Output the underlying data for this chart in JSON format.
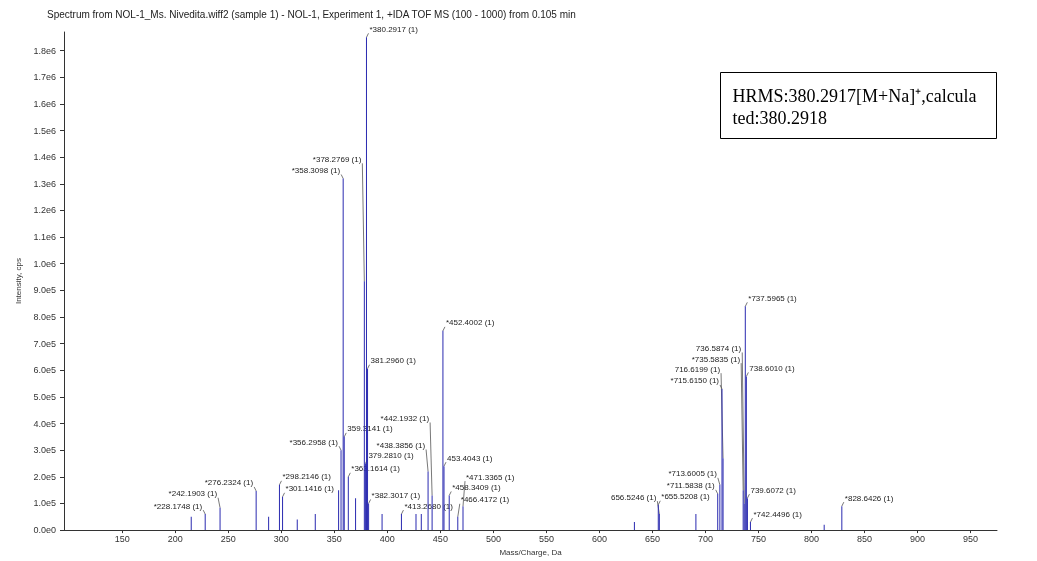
{
  "chart_data": {
    "type": "bar",
    "title": "Spectrum from NOL-1_Ms. Nivedita.wiff2 (sample 1) - NOL-1, Experiment 1, +IDA TOF MS (100 - 1000) from 0.105 min",
    "xlabel": "Mass/Charge, Da",
    "ylabel": "Intensity, cps",
    "color": "#2a2ab0",
    "x": [
      215,
      228.1748,
      242.1903,
      276.2324,
      288,
      298.2146,
      301.1416,
      315,
      332,
      354,
      356.2958,
      358.3098,
      359.3141,
      363.1614,
      370,
      378.2769,
      379.281,
      380.2917,
      381.296,
      382.3017,
      395,
      413.268,
      427,
      432,
      438.3856,
      442.1932,
      452.4002,
      453.4043,
      458.3409,
      466.4172,
      471.3365,
      633,
      655.5208,
      656.5246,
      691,
      711.5838,
      713.6005,
      715.615,
      716.6199,
      735.5835,
      736.5874,
      737.5965,
      738.601,
      739.6072,
      742.4496,
      812,
      828.6426
    ],
    "values": [
      50000,
      60000,
      84000,
      147000,
      50000,
      170000,
      125000,
      40000,
      60000,
      150000,
      300000,
      1320000,
      350000,
      200000,
      120000,
      934000,
      250000,
      1850000,
      606000,
      100000,
      60000,
      60000,
      60000,
      60000,
      220000,
      130000,
      748000,
      240000,
      130000,
      50000,
      90000,
      30000,
      95000,
      60000,
      60000,
      136000,
      170000,
      530000,
      270000,
      150000,
      100000,
      840000,
      577000,
      120000,
      30000,
      20000,
      90000
    ],
    "annotations": [
      {
        "text": "*228.1748 (1)",
        "x": 228.1748,
        "y": 60000
      },
      {
        "text": "*242.1903 (1)",
        "x": 242.1903,
        "y": 84000
      },
      {
        "text": "*276.2324 (1)",
        "x": 276.2324,
        "y": 147000
      },
      {
        "text": "*298.2146 (1)",
        "x": 298.2146,
        "y": 170000
      },
      {
        "text": "*301.1416 (1)",
        "x": 301.1416,
        "y": 125000
      },
      {
        "text": "*356.2958 (1)",
        "x": 356.2958,
        "y": 300000
      },
      {
        "text": "*358.3098 (1)",
        "x": 358.3098,
        "y": 1320000
      },
      {
        "text": "359.3141 (1)",
        "x": 359.3141,
        "y": 350000
      },
      {
        "text": "*363.1614 (1)",
        "x": 363.1614,
        "y": 200000
      },
      {
        "text": "*378.2769 (1)",
        "x": 378.2769,
        "y": 934000
      },
      {
        "text": "379.2810 (1)",
        "x": 379.281,
        "y": 250000
      },
      {
        "text": "*380.2917 (1)",
        "x": 380.2917,
        "y": 1850000
      },
      {
        "text": "381.2960 (1)",
        "x": 381.296,
        "y": 606000
      },
      {
        "text": "*382.3017 (1)",
        "x": 382.3017,
        "y": 100000
      },
      {
        "text": "*413.2680 (1)",
        "x": 413.268,
        "y": 60000
      },
      {
        "text": "*438.3856 (1)",
        "x": 438.3856,
        "y": 220000
      },
      {
        "text": "*442.1932 (1)",
        "x": 442.1932,
        "y": 130000
      },
      {
        "text": "*452.4002 (1)",
        "x": 452.4002,
        "y": 748000
      },
      {
        "text": "453.4043 (1)",
        "x": 453.4043,
        "y": 240000
      },
      {
        "text": "*458.3409 (1)",
        "x": 458.3409,
        "y": 130000
      },
      {
        "text": "*466.4172 (1)",
        "x": 466.4172,
        "y": 50000
      },
      {
        "text": "*471.3365 (1)",
        "x": 471.3365,
        "y": 90000
      },
      {
        "text": "*655.5208 (1)",
        "x": 655.5208,
        "y": 95000
      },
      {
        "text": "656.5246 (1)",
        "x": 656.5246,
        "y": 60000
      },
      {
        "text": "*711.5838 (1)",
        "x": 711.5838,
        "y": 136000
      },
      {
        "text": "*713.6005 (1)",
        "x": 713.6005,
        "y": 170000
      },
      {
        "text": "*715.6150 (1)",
        "x": 715.615,
        "y": 530000
      },
      {
        "text": "716.6199 (1)",
        "x": 716.6199,
        "y": 270000
      },
      {
        "text": "*735.5835 (1)",
        "x": 735.5835,
        "y": 150000
      },
      {
        "text": "736.5874 (1)",
        "x": 736.5874,
        "y": 100000
      },
      {
        "text": "*737.5965 (1)",
        "x": 737.5965,
        "y": 840000
      },
      {
        "text": "738.6010 (1)",
        "x": 738.601,
        "y": 577000
      },
      {
        "text": "739.6072 (1)",
        "x": 739.6072,
        "y": 120000
      },
      {
        "text": "*742.4496 (1)",
        "x": 742.4496,
        "y": 30000
      },
      {
        "text": "*828.6426 (1)",
        "x": 828.6426,
        "y": 90000
      },
      "HRMS:380.2917[M+Na]⁺,calculated:380.2918"
    ],
    "xlim": [
      95,
      975
    ],
    "xticks": [
      150,
      200,
      250,
      300,
      350,
      400,
      450,
      500,
      550,
      600,
      650,
      700,
      750,
      800,
      850,
      900,
      950
    ],
    "ylim": [
      0,
      1870000
    ],
    "yticks": [
      {
        "value": 0,
        "label": "0.0e0"
      },
      {
        "value": 100000,
        "label": "1.0e5"
      },
      {
        "value": 200000,
        "label": "2.0e5"
      },
      {
        "value": 300000,
        "label": "3.0e5"
      },
      {
        "value": 400000,
        "label": "4.0e5"
      },
      {
        "value": 500000,
        "label": "5.0e5"
      },
      {
        "value": 600000,
        "label": "6.0e5"
      },
      {
        "value": 700000,
        "label": "7.0e5"
      },
      {
        "value": 800000,
        "label": "8.0e5"
      },
      {
        "value": 900000,
        "label": "9.0e5"
      },
      {
        "value": 1000000,
        "label": "1.0e6"
      },
      {
        "value": 1100000,
        "label": "1.1e6"
      },
      {
        "value": 1200000,
        "label": "1.2e6"
      },
      {
        "value": 1300000,
        "label": "1.3e6"
      },
      {
        "value": 1400000,
        "label": "1.4e6"
      },
      {
        "value": 1500000,
        "label": "1.5e6"
      },
      {
        "value": 1600000,
        "label": "1.6e6"
      },
      {
        "value": 1700000,
        "label": "1.7e6"
      },
      {
        "value": 1800000,
        "label": "1.8e6"
      }
    ],
    "grid": false
  }
}
